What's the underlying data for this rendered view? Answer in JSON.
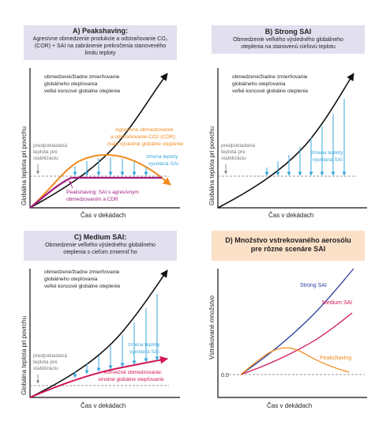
{
  "colors": {
    "header_purple": "#e2dfef",
    "header_orange": "#fbe1c8",
    "black_curve": "#111111",
    "sai_blue": "#3aa7dc",
    "peakshaving_orange": "#f08a1c",
    "magenta": "#a11c7f",
    "crimson": "#d01656",
    "strong_blue": "#2b3f99",
    "dashed_gray": "#777777"
  },
  "panel_a": {
    "title": "A) Peakshaving:",
    "desc_line1": "Agresívne obmedzenie produkcie a odstraňovanie CO₂",
    "desc_line2": "(COR) + SAI na zabránenie prekročenia stanoveného",
    "desc_line3": "limitu teploty",
    "y_axis_label": "Globálna teplota pri povrchu",
    "x_axis_label": "Čas v dekádach",
    "black_label_1": "obmedzené/žiadne zmierňovanie",
    "black_label_2": "globálneho otepľovania",
    "black_label_3": "veľké koncové globálne oteplenie",
    "baseline_label_1": "predpokladaná",
    "baseline_label_2": "teplota pre",
    "baseline_label_3": "stabilizáciu",
    "orange_label_1": "Agresívne obmedzovanie",
    "orange_label_2": "a odstraňovanie CO2 (CDR):",
    "orange_label_3": "malé výsledné globálne oteplenie",
    "blue_label_1": "zmena teploty",
    "blue_label_2": "vyvolaná SAI",
    "magenta_label_1": "Peakshaving: SAI s agresívnym",
    "magenta_label_2": "obmedzovaním a CDR"
  },
  "panel_b": {
    "title": "B) Strong SAI",
    "desc_line1": "Obmedzenie veľkého výsledného globálneho",
    "desc_line2": "oteplenia na stanovenú cieľovú teplotu",
    "y_axis_label": "Globálna teplota pri povrchu",
    "x_axis_label": "Čas v dekádach",
    "black_label_1": "obmedzené/žiadne zmierňovanie",
    "black_label_2": "globálneho otepľovania",
    "black_label_3": "veľké koncové globálne oteplenie",
    "baseline_label_1": "predpokladaná",
    "baseline_label_2": "teplota pre",
    "baseline_label_3": "stabilizáciu",
    "blue_label_1": "zmena teploty",
    "blue_label_2": "vyvolaná SAI"
  },
  "panel_c": {
    "title": "C) Medium SAI:",
    "desc_line1": "Obmedzenie veľkého výsledného globálneho",
    "desc_line2": "oteplenia s cieľom zmierniť ho",
    "y_axis_label": "Globálna teplota pri povrchu",
    "x_axis_label": "Čas v dekádach",
    "black_label_1": "obmedzené/žiadne zmierňovanie",
    "black_label_2": "globálneho otepľovania",
    "black_label_3": "veľké koncové globálne oteplenie",
    "baseline_label_1": "predpokladaná",
    "baseline_label_2": "teplota pre",
    "baseline_label_3": "stabilizáciu",
    "blue_label_1": "zmena teploty",
    "blue_label_2": "vyvolaná SAI",
    "crimson_label_1": "konvečné obmedzovanie:",
    "crimson_label_2": "stredné globálne otepľovanie"
  },
  "panel_d": {
    "title_line1": "D) Množstvo vstrekovaného aerosólu",
    "title_line2": "pre rôzne scenáre SAI",
    "y_axis_label": "Vstrekované množstvo",
    "x_axis_label": "Čas v dekádach",
    "zero_label": "0.0",
    "strong_label": "Strong SAI",
    "medium_label": "Medium SAI",
    "peak_label": "Peakshaving"
  }
}
